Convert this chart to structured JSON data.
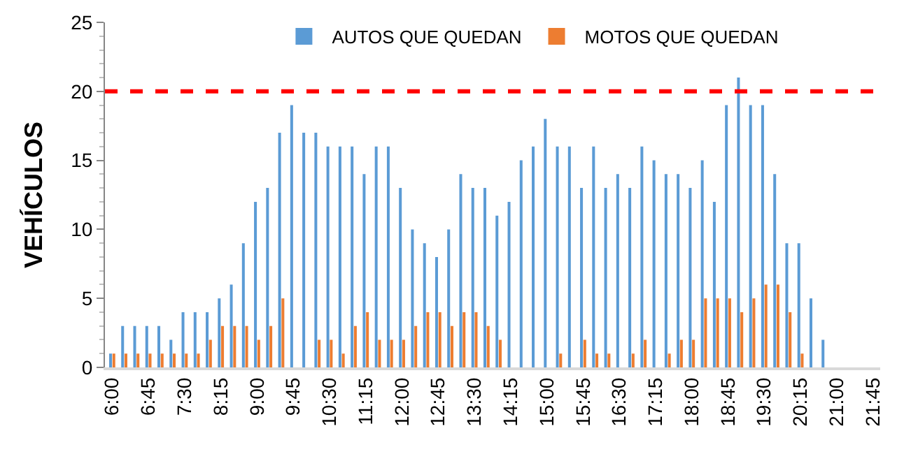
{
  "chart_data": {
    "type": "bar",
    "ylabel": "VEHÍCULOS",
    "categories": [
      "6:00",
      null,
      null,
      "6:45",
      null,
      null,
      "7:30",
      null,
      null,
      "8:15",
      null,
      null,
      "9:00",
      null,
      null,
      "9:45",
      null,
      null,
      "10:30",
      null,
      null,
      "11:15",
      null,
      null,
      "12:00",
      null,
      null,
      "12:45",
      null,
      null,
      "13:30",
      null,
      null,
      "14:15",
      null,
      null,
      "15:00",
      null,
      null,
      "15:45",
      null,
      null,
      "16:30",
      null,
      null,
      "17:15",
      null,
      null,
      "18:00",
      null,
      null,
      "18:45",
      null,
      null,
      "19:30",
      null,
      null,
      "20:15",
      null,
      null,
      "21:00",
      null,
      null,
      "21:45"
    ],
    "series": [
      {
        "name": "AUTOS QUE QUEDAN",
        "color": "#5b9bd5",
        "values": [
          1,
          3,
          3,
          3,
          3,
          2,
          4,
          4,
          4,
          5,
          6,
          9,
          12,
          13,
          17,
          19,
          17,
          17,
          16,
          16,
          16,
          14,
          16,
          16,
          13,
          10,
          9,
          8,
          10,
          14,
          13,
          13,
          11,
          12,
          15,
          16,
          18,
          16,
          16,
          13,
          16,
          13,
          14,
          13,
          16,
          15,
          14,
          14,
          13,
          15,
          12,
          19,
          21,
          19,
          19,
          14,
          9,
          9,
          5,
          2,
          0,
          0,
          0,
          0
        ]
      },
      {
        "name": "MOTOS QUE QUEDAN",
        "color": "#ed7d31",
        "values": [
          1,
          1,
          1,
          1,
          1,
          1,
          1,
          1,
          2,
          3,
          3,
          3,
          2,
          3,
          5,
          0,
          0,
          2,
          2,
          1,
          3,
          4,
          2,
          2,
          2,
          3,
          4,
          4,
          3,
          4,
          4,
          3,
          2,
          0,
          0,
          0,
          0,
          1,
          0,
          2,
          1,
          1,
          0,
          1,
          2,
          0,
          1,
          2,
          2,
          5,
          5,
          5,
          4,
          5,
          6,
          6,
          4,
          1,
          0,
          0,
          0,
          0,
          0,
          0
        ]
      }
    ],
    "ylim": [
      0,
      25
    ],
    "yticks": [
      0,
      5,
      10,
      15,
      20,
      25
    ],
    "ref_lines": [
      {
        "axis": "y",
        "value": 20,
        "color": "#ff0000",
        "line_style": "dashed"
      }
    ],
    "legend": "top"
  }
}
